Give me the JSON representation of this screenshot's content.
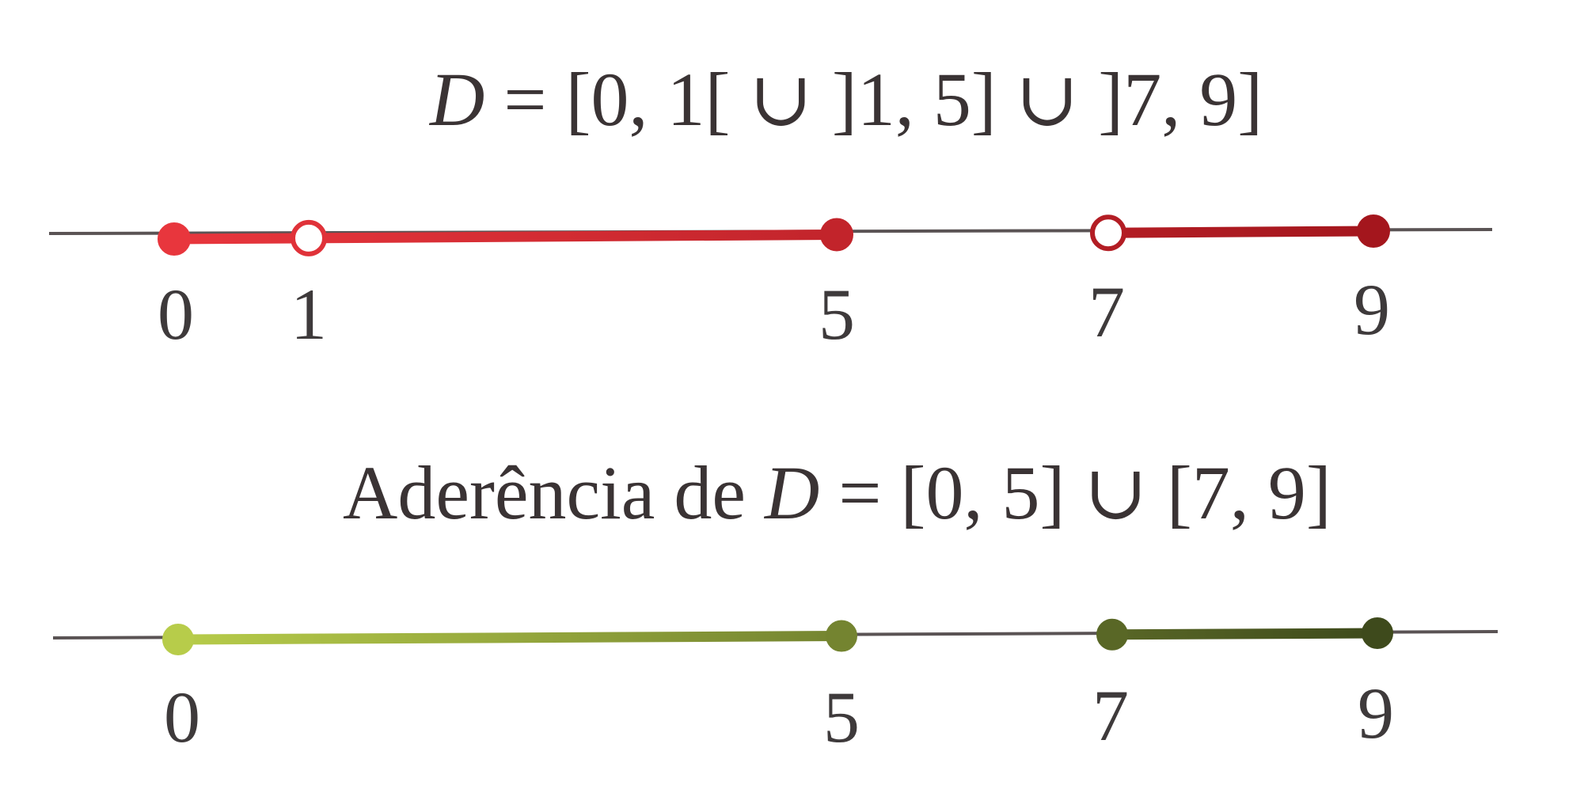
{
  "figures": [
    {
      "id": "d",
      "formula": {
        "prefix": "",
        "var": "D",
        "rest": " = [0, 1[ ∪ ]1, 5] ∪ ]7, 9]"
      },
      "ticks": [
        "0",
        "1",
        "5",
        "7",
        "9"
      ],
      "segments": [
        {
          "from": 0,
          "to": 1
        },
        {
          "from": 1,
          "to": 5
        },
        {
          "from": 7,
          "to": 9
        }
      ],
      "points": [
        {
          "value": 0,
          "filled": true
        },
        {
          "value": 1,
          "filled": false
        },
        {
          "value": 5,
          "filled": true
        },
        {
          "value": 7,
          "filled": false
        },
        {
          "value": 9,
          "filled": true
        }
      ],
      "colors": {
        "start": "#e8363d",
        "end": "#a4161d",
        "axis": "#5a5354"
      }
    },
    {
      "id": "aderencia",
      "formula": {
        "prefix": "Aderência de ",
        "var": "D",
        "rest": " = [0, 5] ∪ [7, 9]"
      },
      "ticks": [
        "0",
        "5",
        "7",
        "9"
      ],
      "segments": [
        {
          "from": 0,
          "to": 5
        },
        {
          "from": 7,
          "to": 9
        }
      ],
      "points": [
        {
          "value": 0,
          "filled": true
        },
        {
          "value": 5,
          "filled": true
        },
        {
          "value": 7,
          "filled": true
        },
        {
          "value": 9,
          "filled": true
        }
      ],
      "colors": {
        "start": "#b7cc4a",
        "end": "#3e4a1c",
        "axis": "#5a5354"
      }
    }
  ]
}
